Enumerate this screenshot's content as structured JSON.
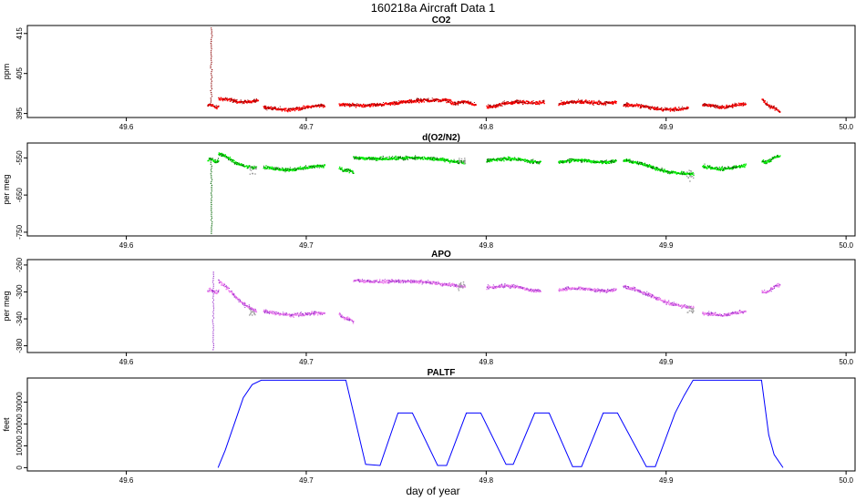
{
  "figure": {
    "title": "160218a   Aircraft Data 1",
    "xlabel": "day of year"
  },
  "colors": {
    "co2_main": "#ff0000",
    "co2_dark": "#8b0000",
    "o2_main": "#00ee00",
    "o2_dark": "#006400",
    "apo_main": "#ee82ee",
    "apo_dark": "#9932cc",
    "flagged": "#a0a0a0",
    "paltf_line": "#0000ff"
  },
  "chart_data": [
    {
      "type": "scatter",
      "title": "CO2",
      "ylabel": "ppm",
      "xlim": [
        49.545,
        50.005
      ],
      "ylim": [
        394,
        417
      ],
      "xticks": [
        "49.6",
        "49.7",
        "49.8",
        "49.9",
        "50.0"
      ],
      "yticks": [
        "395",
        "405",
        "415"
      ],
      "segments": [
        {
          "x": [
            49.645,
            49.651
          ],
          "y": [
            397,
            397
          ]
        },
        {
          "x": [
            49.651,
            49.673
          ],
          "y": [
            398.5,
            398.2
          ]
        },
        {
          "x": [
            49.676,
            49.71
          ],
          "y": [
            396.3,
            396.8
          ]
        },
        {
          "x": [
            49.718,
            49.78
          ],
          "y": [
            397.3,
            398.3
          ]
        },
        {
          "x": [
            49.78,
            49.794
          ],
          "y": [
            398.0,
            397.5
          ]
        },
        {
          "x": [
            49.8,
            49.832
          ],
          "y": [
            397.0,
            398.3
          ]
        },
        {
          "x": [
            49.84,
            49.872
          ],
          "y": [
            397.6,
            398.2
          ]
        },
        {
          "x": [
            49.876,
            49.912
          ],
          "y": [
            397.0,
            396.2
          ]
        },
        {
          "x": [
            49.92,
            49.944
          ],
          "y": [
            397.0,
            397.2
          ]
        },
        {
          "x": [
            49.953,
            49.963
          ],
          "y": [
            398.6,
            395.2
          ]
        }
      ],
      "spike": {
        "x": 49.647,
        "y": [
          398,
          416.5
        ]
      }
    },
    {
      "type": "scatter",
      "title": "d(O2/N2)",
      "ylabel": "per meg",
      "xlim": [
        49.545,
        50.005
      ],
      "ylim": [
        -760,
        -510
      ],
      "xticks": [
        "49.6",
        "49.7",
        "49.8",
        "49.9",
        "50.0"
      ],
      "yticks": [
        "-550",
        "-650",
        "-750"
      ],
      "segments": [
        {
          "x": [
            49.645,
            49.651
          ],
          "y": [
            -555,
            -555
          ]
        },
        {
          "x": [
            49.651,
            49.672
          ],
          "y": [
            -540,
            -580
          ]
        },
        {
          "x": [
            49.676,
            49.71
          ],
          "y": [
            -578,
            -574
          ]
        },
        {
          "x": [
            49.718,
            49.726
          ],
          "y": [
            -575,
            -590
          ]
        },
        {
          "x": [
            49.726,
            49.788
          ],
          "y": [
            -545,
            -558
          ]
        },
        {
          "x": [
            49.8,
            49.83
          ],
          "y": [
            -552,
            -557
          ]
        },
        {
          "x": [
            49.84,
            49.872
          ],
          "y": [
            -560,
            -555
          ]
        },
        {
          "x": [
            49.876,
            49.915
          ],
          "y": [
            -558,
            -595
          ]
        },
        {
          "x": [
            49.92,
            49.944
          ],
          "y": [
            -576,
            -573
          ]
        },
        {
          "x": [
            49.953,
            49.963
          ],
          "y": [
            -560,
            -545
          ]
        }
      ],
      "spike": {
        "x": 49.647,
        "y": [
          -752,
          -550
        ]
      }
    },
    {
      "type": "scatter",
      "title": "APO",
      "ylabel": "per meg",
      "xlim": [
        49.545,
        50.005
      ],
      "ylim": [
        -390,
        -252
      ],
      "xticks": [
        "49.6",
        "49.7",
        "49.8",
        "49.9",
        "50.0"
      ],
      "yticks": [
        "-260",
        "-300",
        "-340",
        "-380"
      ],
      "segments": [
        {
          "x": [
            49.645,
            49.651
          ],
          "y": [
            -298,
            -298
          ]
        },
        {
          "x": [
            49.651,
            49.672
          ],
          "y": [
            -285,
            -330
          ]
        },
        {
          "x": [
            49.676,
            49.71
          ],
          "y": [
            -330,
            -333
          ]
        },
        {
          "x": [
            49.718,
            49.726
          ],
          "y": [
            -332,
            -345
          ]
        },
        {
          "x": [
            49.726,
            49.788
          ],
          "y": [
            -280,
            -290
          ]
        },
        {
          "x": [
            49.8,
            49.83
          ],
          "y": [
            -290,
            -296
          ]
        },
        {
          "x": [
            49.84,
            49.872
          ],
          "y": [
            -296,
            -295
          ]
        },
        {
          "x": [
            49.876,
            49.915
          ],
          "y": [
            -292,
            -325
          ]
        },
        {
          "x": [
            49.92,
            49.944
          ],
          "y": [
            -333,
            -330
          ]
        },
        {
          "x": [
            49.953,
            49.963
          ],
          "y": [
            -300,
            -290
          ]
        }
      ],
      "spike": {
        "x": 49.648,
        "y": [
          -385,
          -270
        ]
      }
    },
    {
      "type": "line",
      "title": "PALTF",
      "ylabel": "feet",
      "xlim": [
        49.545,
        50.005
      ],
      "ylim": [
        -1500,
        41000
      ],
      "xticks": [
        "49.6",
        "49.7",
        "49.8",
        "49.9",
        "50.0"
      ],
      "yticks": [
        "0",
        "10000",
        "20000",
        "30000"
      ],
      "x": [
        49.651,
        49.655,
        49.66,
        49.665,
        49.67,
        49.675,
        49.722,
        49.733,
        49.741,
        49.751,
        49.759,
        49.773,
        49.778,
        49.789,
        49.797,
        49.811,
        49.815,
        49.827,
        49.835,
        49.848,
        49.853,
        49.865,
        49.873,
        49.889,
        49.894,
        49.905,
        49.91,
        49.915,
        49.953,
        49.957,
        49.96,
        49.965
      ],
      "y": [
        0,
        8000,
        20000,
        32000,
        38000,
        40000,
        40000,
        1500,
        1000,
        25000,
        25000,
        1000,
        1000,
        25000,
        25000,
        1500,
        1500,
        25000,
        25000,
        500,
        500,
        25000,
        25000,
        500,
        500,
        25000,
        33000,
        40000,
        40000,
        15000,
        6000,
        0
      ]
    }
  ]
}
